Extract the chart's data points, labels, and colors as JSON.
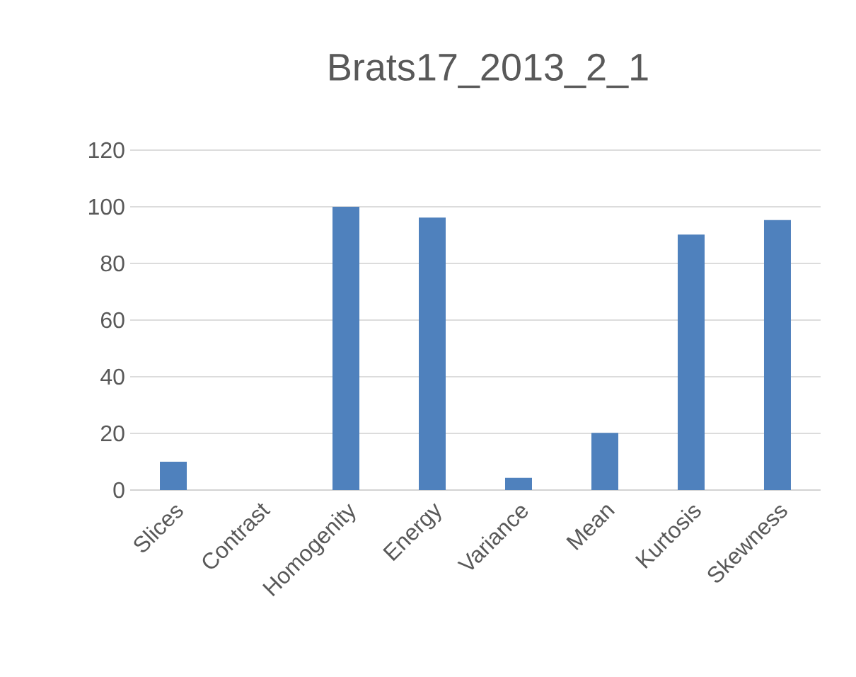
{
  "chart_data": {
    "type": "bar",
    "title": "Brats17_2013_2_1",
    "categories": [
      "Slices",
      "Contrast",
      "Homogenity",
      "Energy",
      "Variance",
      "Mean",
      "Kurtosis",
      "Skewness"
    ],
    "values": [
      10,
      0,
      100,
      96.2,
      4.3,
      20.2,
      90.2,
      95.3
    ],
    "color": "#4f81bd",
    "ylim": [
      0,
      120
    ],
    "yticks": [
      0,
      20,
      40,
      60,
      80,
      100,
      120
    ],
    "grid": "y"
  }
}
